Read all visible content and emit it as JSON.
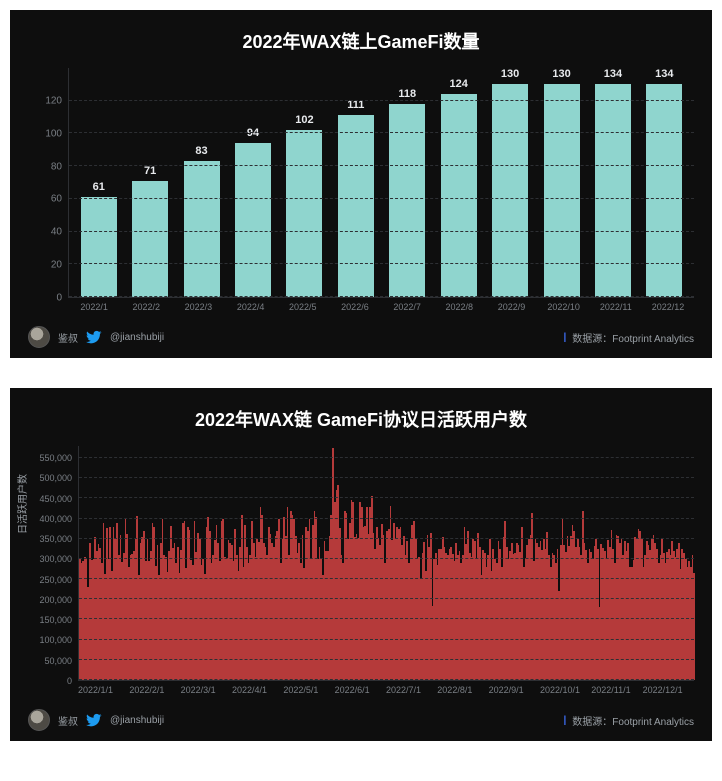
{
  "chart1": {
    "type": "bar",
    "title": "2022年WAX链上GameFi数量",
    "title_fontsize": 18,
    "background_color": "#0e0e0e",
    "bar_color": "#8fd5ce",
    "value_label_color": "#e8eaed",
    "value_label_fontsize": 11,
    "axis_font_color": "#7a7f85",
    "axis_fontsize": 10,
    "grid_color": "#2d2f33",
    "bar_width": 0.7,
    "ylim": [
      0,
      140
    ],
    "ytick_step": 20,
    "yticks": [
      0,
      20,
      40,
      60,
      80,
      100,
      120
    ],
    "categories": [
      "2022/1",
      "2022/2",
      "2022/3",
      "2022/4",
      "2022/5",
      "2022/6",
      "2022/7",
      "2022/8",
      "2022/9",
      "2022/10",
      "2022/11",
      "2022/12"
    ],
    "values": [
      61,
      71,
      83,
      94,
      102,
      111,
      118,
      124,
      130,
      130,
      134,
      134
    ]
  },
  "chart2": {
    "type": "bar",
    "title": "2022年WAX链 GameFi协议日活跃用户数",
    "title_fontsize": 18,
    "background_color": "#0e0e0e",
    "bar_color": "#b53a3a",
    "axis_font_color": "#7a7f85",
    "axis_fontsize": 9,
    "grid_color": "#2d2f33",
    "ylabel": "日活跃用户数",
    "ylim": [
      0,
      580000
    ],
    "ytick_step": 50000,
    "yticks": [
      0,
      50000,
      100000,
      150000,
      200000,
      250000,
      300000,
      350000,
      400000,
      450000,
      500000,
      550000
    ],
    "x_tick_labels": [
      "2022/1/1",
      "2022/2/1",
      "2022/3/1",
      "2022/4/1",
      "2022/5/1",
      "2022/6/1",
      "2022/7/1",
      "2022/8/1",
      "2022/9/1",
      "2022/10/1",
      "2022/11/1",
      "2022/12/1"
    ],
    "values": [
      303000,
      291000,
      296000,
      306000,
      300000,
      231000,
      340000,
      298000,
      300000,
      354000,
      320000,
      338000,
      326000,
      291000,
      390000,
      262000,
      376000,
      300000,
      380000,
      270000,
      380000,
      351000,
      388000,
      311000,
      360000,
      293000,
      316000,
      398000,
      361000,
      280000,
      310000,
      313000,
      320000,
      350000,
      407000,
      260000,
      340000,
      354000,
      370000,
      296000,
      350000,
      294000,
      320000,
      390000,
      380000,
      282000,
      335000,
      260000,
      340000,
      400000,
      310000,
      305000,
      268000,
      320000,
      381000,
      328000,
      340000,
      290000,
      330000,
      265000,
      322000,
      390000,
      395000,
      278000,
      380000,
      372000,
      297000,
      284000,
      395000,
      318000,
      365000,
      350000,
      285000,
      300000,
      263000,
      380000,
      405000,
      370000,
      290000,
      310000,
      346000,
      385000,
      340000,
      294000,
      395000,
      399000,
      306000,
      303000,
      346000,
      340000,
      334000,
      296000,
      375000,
      310000,
      270000,
      330000,
      408000,
      280000,
      385000,
      330000,
      290000,
      310000,
      395000,
      340000,
      305000,
      350000,
      343000,
      430000,
      410000,
      340000,
      330000,
      310000,
      380000,
      363000,
      340000,
      330000,
      356000,
      370000,
      398000,
      290000,
      350000,
      405000,
      356000,
      430000,
      310000,
      418000,
      410000,
      400000,
      356000,
      316000,
      340000,
      290000,
      360000,
      277000,
      380000,
      370000,
      398000,
      303000,
      385000,
      420000,
      405000,
      300000,
      330000,
      299000,
      260000,
      345000,
      320000,
      320000,
      357000,
      410000,
      575000,
      440000,
      470000,
      483000,
      377000,
      310000,
      290000,
      420000,
      415000,
      350000,
      389000,
      445000,
      442000,
      355000,
      363000,
      353000,
      440000,
      430000,
      380000,
      381000,
      430000,
      363000,
      430000,
      455000,
      365000,
      325000,
      380000,
      353000,
      335000,
      387000,
      360000,
      290000,
      370000,
      375000,
      431000,
      348000,
      390000,
      350000,
      380000,
      375000,
      380000,
      334000,
      356000,
      310000,
      345000,
      290000,
      349000,
      383000,
      393000,
      350000,
      300000,
      305000,
      250000,
      315000,
      343000,
      270000,
      360000,
      330000,
      365000,
      184000,
      300000,
      315000,
      285000,
      325000,
      325000,
      355000,
      330000,
      316000,
      310000,
      325000,
      330000,
      313000,
      295000,
      340000,
      310000,
      320000,
      290000,
      310000,
      380000,
      338000,
      370000,
      315000,
      305000,
      350000,
      345000,
      300000,
      365000,
      330000,
      260000,
      323000,
      315000,
      280000,
      310000,
      350000,
      270000,
      325000,
      300000,
      290000,
      345000,
      325000,
      280000,
      355000,
      395000,
      330000,
      300000,
      320000,
      340000,
      313000,
      315000,
      340000,
      335000,
      318000,
      380000,
      280000,
      302000,
      335000,
      350000,
      360000,
      415000,
      295000,
      350000,
      340000,
      330000,
      345000,
      323000,
      350000,
      325000,
      368000,
      310000,
      281000,
      315000,
      309000,
      290000,
      325000,
      220000,
      335000,
      400000,
      335000,
      318000,
      356000,
      333000,
      358000,
      383000,
      370000,
      330000,
      350000,
      330000,
      310000,
      420000,
      340000,
      323000,
      290000,
      325000,
      318000,
      300000,
      333000,
      350000,
      325000,
      180000,
      337000,
      327000,
      320000,
      300000,
      346000,
      330000,
      373000,
      325000,
      290000,
      360000,
      356000,
      340000,
      350000,
      310000,
      345000,
      320000,
      340000,
      280000,
      280000,
      298000,
      355000,
      350000,
      375000,
      370000,
      350000,
      280000,
      310000,
      345000,
      335000,
      323000,
      350000,
      360000,
      340000,
      325000,
      290000,
      310000,
      350000,
      315000,
      290000,
      317000,
      325000,
      310000,
      345000,
      320000,
      305000,
      325000,
      340000,
      275000,
      325000,
      315000,
      300000,
      280000,
      295000,
      280000,
      310000,
      265000
    ]
  },
  "footer": {
    "author_name": "鉴叔",
    "twitter_handle": "@jianshubiji",
    "source_label": "数据源：Footprint  Analytics",
    "twitter_color": "#1d9bf0",
    "pipe_color": "#3d6df0"
  }
}
